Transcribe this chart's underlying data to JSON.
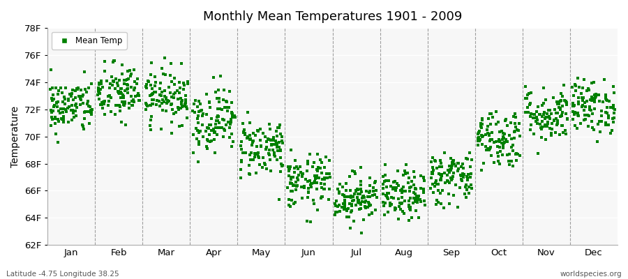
{
  "title": "Monthly Mean Temperatures 1901 - 2009",
  "ylabel": "Temperature",
  "xlabel_labels": [
    "Jan",
    "Feb",
    "Mar",
    "Apr",
    "May",
    "Jun",
    "Jul",
    "Aug",
    "Sep",
    "Oct",
    "Nov",
    "Dec"
  ],
  "ytick_labels": [
    "62F",
    "64F",
    "66F",
    "68F",
    "70F",
    "72F",
    "74F",
    "76F",
    "78F"
  ],
  "ytick_values": [
    62,
    64,
    66,
    68,
    70,
    72,
    74,
    76,
    78
  ],
  "ylim": [
    62,
    78
  ],
  "dot_color": "#008000",
  "background_color": "#f2f2f2",
  "plot_bg": "#f7f7f7",
  "legend_label": "Mean Temp",
  "footer_left": "Latitude -4.75 Longitude 38.25",
  "footer_right": "worldspecies.org",
  "monthly_means": [
    72.2,
    73.2,
    73.0,
    71.3,
    69.2,
    66.6,
    65.5,
    65.6,
    67.0,
    69.9,
    71.6,
    72.2
  ],
  "monthly_stds": [
    1.0,
    1.1,
    1.0,
    1.2,
    1.1,
    1.0,
    0.9,
    0.9,
    1.0,
    1.1,
    1.0,
    1.0
  ],
  "n_years": 109,
  "seed": 42
}
